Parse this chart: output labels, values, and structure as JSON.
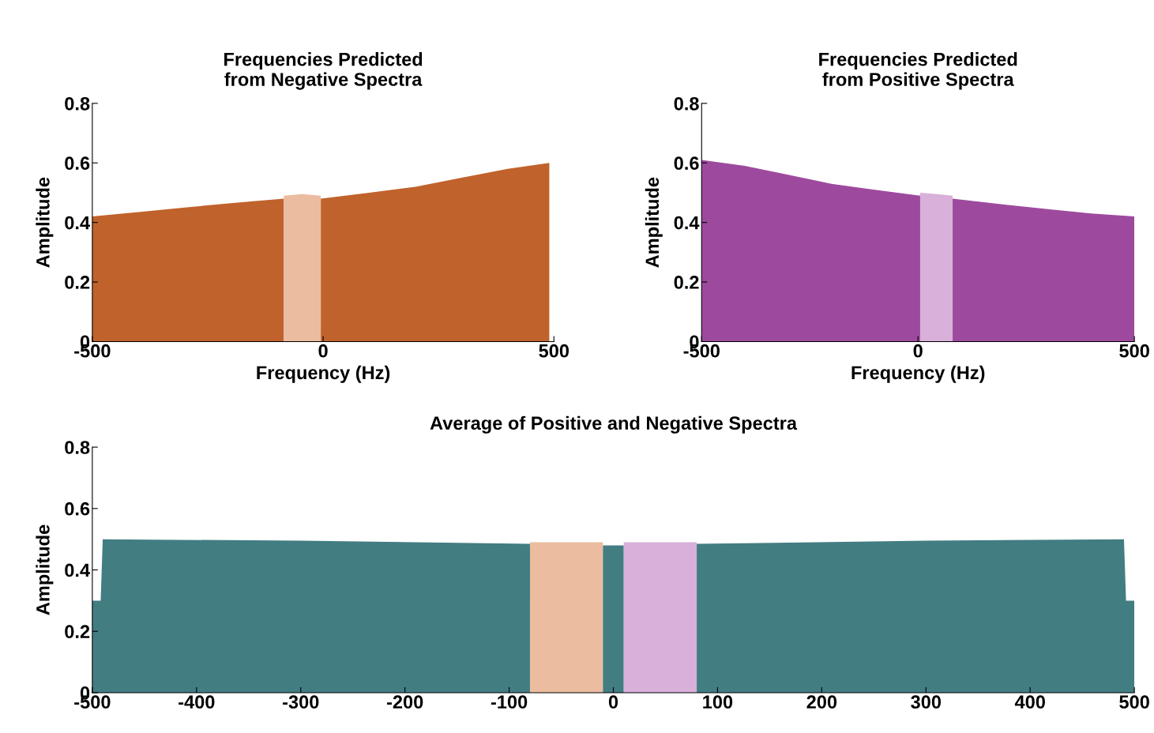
{
  "chart_data": [
    {
      "type": "area",
      "title": "Frequencies Predicted\nfrom Negative Spectra",
      "xlabel": "Frequency (Hz)",
      "ylabel": "Amplitude",
      "xlim": [
        -500,
        500
      ],
      "xticks": [
        -500,
        0,
        500
      ],
      "ylim": [
        0,
        0.8
      ],
      "yticks": [
        0,
        0.2,
        0.4,
        0.6,
        0.8
      ],
      "grid": false,
      "legend": false,
      "series": [
        {
          "color": "#c0622c",
          "x": [
            -500,
            -400,
            -300,
            -200,
            -85
          ],
          "values": [
            0.42,
            0.435,
            0.45,
            0.465,
            0.48
          ]
        },
        {
          "color": "#ebbca0",
          "x": [
            -85,
            -45,
            -5
          ],
          "values": [
            0.49,
            0.495,
            0.49
          ]
        },
        {
          "color": "#c0622c",
          "x": [
            -5,
            100,
            200,
            300,
            400,
            490
          ],
          "values": [
            0.48,
            0.5,
            0.52,
            0.55,
            0.58,
            0.6
          ]
        }
      ]
    },
    {
      "type": "area",
      "title": "Frequencies Predicted\nfrom Positive Spectra",
      "xlabel": "Frequency (Hz)",
      "ylabel": "Amplitude",
      "xlim": [
        -500,
        500
      ],
      "xticks": [
        -500,
        0,
        500
      ],
      "ylim": [
        0,
        0.8
      ],
      "yticks": [
        0,
        0.2,
        0.4,
        0.6,
        0.8
      ],
      "grid": false,
      "legend": false,
      "series": [
        {
          "color": "#9d4a9e",
          "x": [
            -500,
            -400,
            -300,
            -200,
            -100,
            5
          ],
          "values": [
            0.61,
            0.59,
            0.56,
            0.53,
            0.51,
            0.49
          ]
        },
        {
          "color": "#d9b0da",
          "x": [
            5,
            45,
            80
          ],
          "values": [
            0.5,
            0.495,
            0.49
          ]
        },
        {
          "color": "#9d4a9e",
          "x": [
            80,
            200,
            300,
            400,
            500
          ],
          "values": [
            0.48,
            0.46,
            0.445,
            0.43,
            0.42
          ]
        }
      ]
    },
    {
      "type": "area",
      "title": "Average of Positive and Negative Spectra",
      "ylabel": "Amplitude",
      "xlim": [
        -500,
        500
      ],
      "xticks": [
        -500,
        -400,
        -300,
        -200,
        -100,
        0,
        100,
        200,
        300,
        400,
        500
      ],
      "ylim": [
        0,
        0.8
      ],
      "yticks": [
        0,
        0.2,
        0.4,
        0.6,
        0.8
      ],
      "grid": false,
      "legend": false,
      "series": [
        {
          "color": "#427d82",
          "x": [
            -500,
            -492,
            -490,
            -300,
            -80
          ],
          "values": [
            0.3,
            0.3,
            0.5,
            0.495,
            0.485
          ]
        },
        {
          "color": "#ebbca0",
          "x": [
            -80,
            -45,
            -10
          ],
          "values": [
            0.49,
            0.49,
            0.49
          ]
        },
        {
          "color": "#427d82",
          "x": [
            -10,
            10
          ],
          "values": [
            0.48,
            0.48
          ]
        },
        {
          "color": "#d9b0da",
          "x": [
            10,
            45,
            80
          ],
          "values": [
            0.49,
            0.49,
            0.49
          ]
        },
        {
          "color": "#427d82",
          "x": [
            80,
            300,
            490,
            492,
            500
          ],
          "values": [
            0.485,
            0.495,
            0.5,
            0.3,
            0.3
          ]
        }
      ]
    }
  ]
}
